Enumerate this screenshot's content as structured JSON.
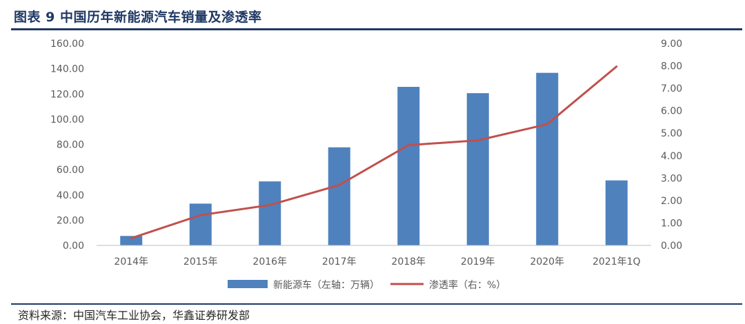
{
  "title": "图表 9 中国历年新能源汽车销量及渗透率",
  "source": "资料来源：中国汽车工业协会，华鑫证券研发部",
  "chart_data": {
    "type": "bar+line",
    "categories": [
      "2014年",
      "2015年",
      "2016年",
      "2017年",
      "2018年",
      "2019年",
      "2020年",
      "2021年1Q"
    ],
    "series": [
      {
        "name": "新能源车（左轴：万辆）",
        "type": "bar",
        "axis": "left",
        "color": "#4f81bd",
        "values": [
          7.5,
          33.1,
          50.7,
          77.7,
          125.6,
          120.6,
          136.7,
          51.5
        ]
      },
      {
        "name": "渗透率（右：%）",
        "type": "line",
        "axis": "right",
        "color": "#c0504d",
        "values": [
          0.32,
          1.35,
          1.8,
          2.69,
          4.47,
          4.68,
          5.4,
          7.97
        ]
      }
    ],
    "left_axis": {
      "ylim": [
        0,
        160
      ],
      "ticks": [
        "0.00",
        "20.00",
        "40.00",
        "60.00",
        "80.00",
        "100.00",
        "120.00",
        "140.00",
        "160.00"
      ]
    },
    "right_axis": {
      "ylim": [
        0,
        9
      ],
      "ticks": [
        "0.00",
        "1.00",
        "2.00",
        "3.00",
        "4.00",
        "5.00",
        "6.00",
        "7.00",
        "8.00",
        "9.00"
      ]
    },
    "legend_position": "bottom",
    "grid": false
  }
}
